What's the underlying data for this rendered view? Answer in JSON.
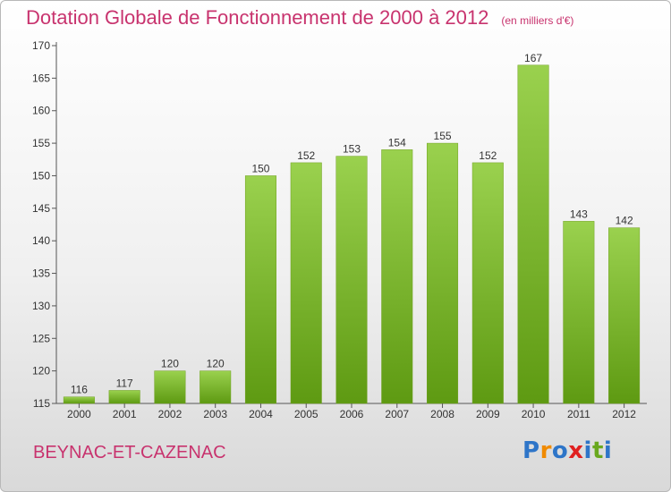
{
  "title": "Dotation Globale de Fonctionnement de 2000 à 2012",
  "subtitle": "(en milliers d'€)",
  "commune": "BEYNAC-ET-CAZENAC",
  "logo": {
    "letters": [
      "P",
      "r",
      "o",
      "x",
      "i",
      "t",
      "i"
    ],
    "colors": [
      "#2e75c8",
      "#f08a00",
      "#2e75c8",
      "#e02020",
      "#2e75c8",
      "#69a81e",
      "#2e75c8"
    ]
  },
  "colors": {
    "accent": "#c8336e",
    "bar_light": "#9ad14e",
    "bar_dark": "#5e9a12"
  },
  "chart_data": {
    "type": "bar",
    "categories": [
      "2000",
      "2001",
      "2002",
      "2003",
      "2004",
      "2005",
      "2006",
      "2007",
      "2008",
      "2009",
      "2010",
      "2011",
      "2012"
    ],
    "values": [
      116,
      117,
      120,
      120,
      150,
      152,
      153,
      154,
      155,
      152,
      167,
      143,
      142
    ],
    "ylim": [
      115,
      170
    ],
    "yticks": [
      115,
      120,
      125,
      130,
      135,
      140,
      145,
      150,
      155,
      160,
      165,
      170
    ],
    "grid": false
  }
}
